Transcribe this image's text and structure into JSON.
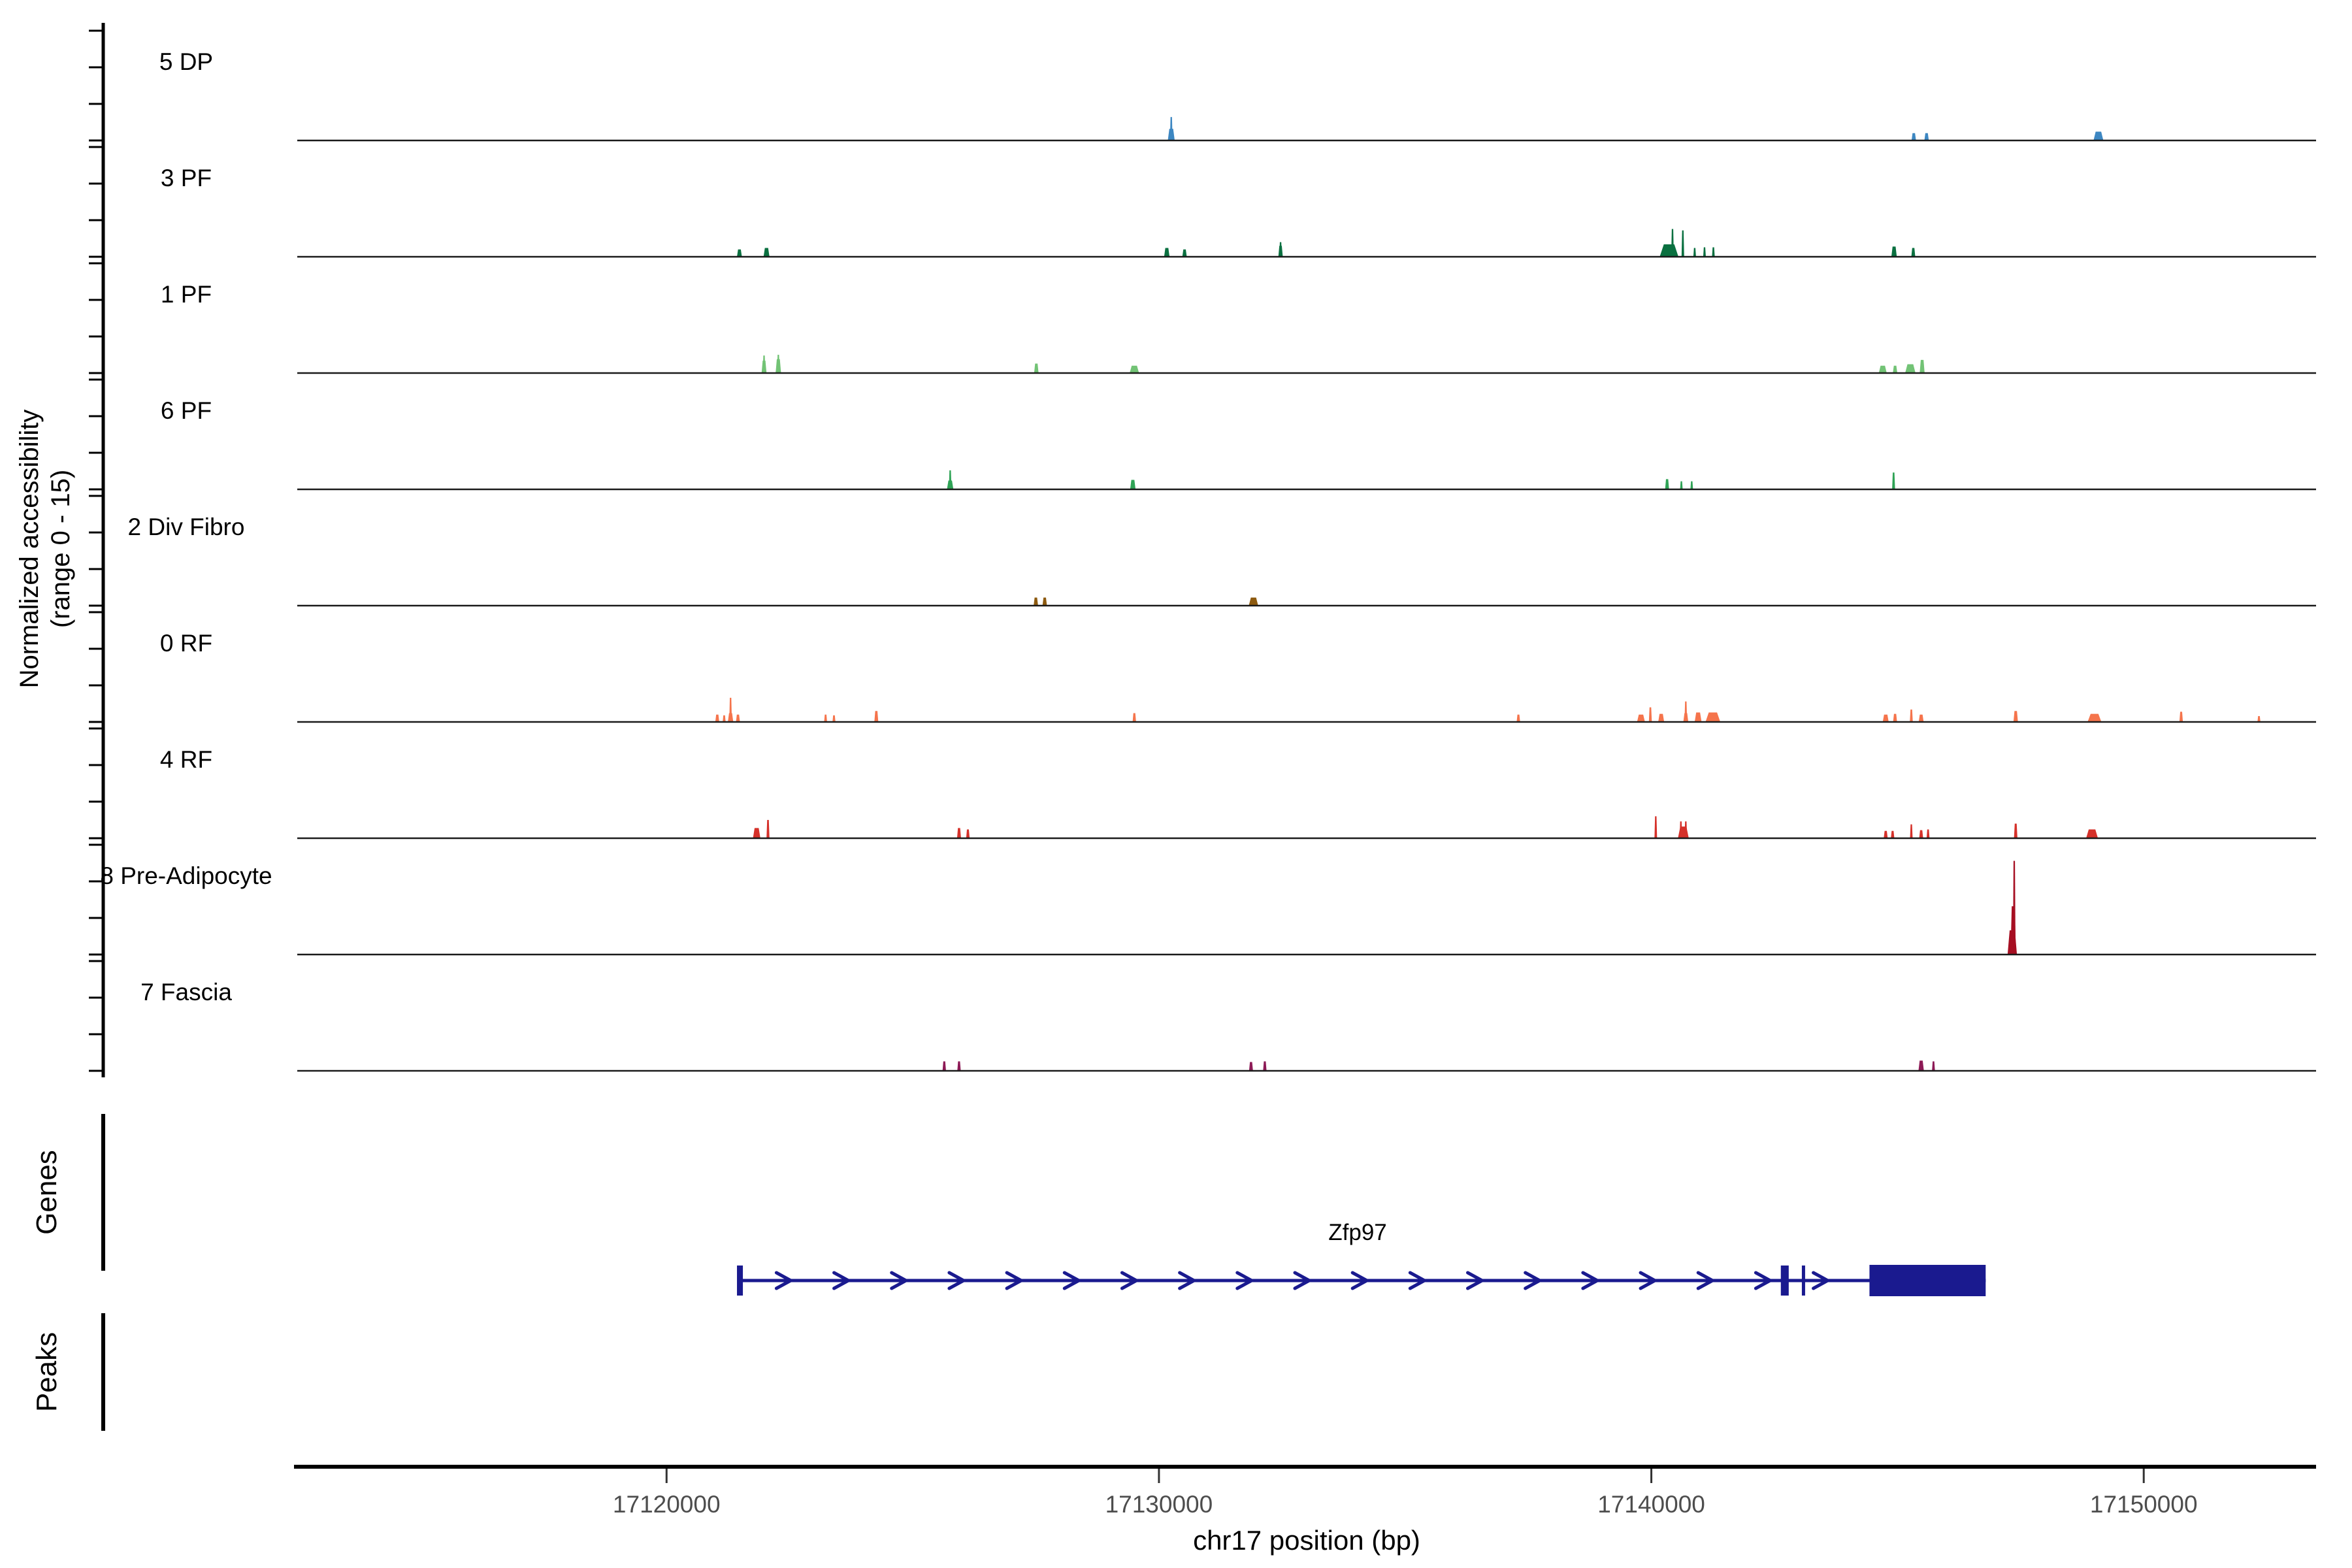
{
  "chart_data": {
    "type": "area",
    "subtype": "genome-accessibility-tracks",
    "y_axis": {
      "label_line1": "Normalized accessibility",
      "label_line2": "(range 0 - 15)",
      "range": [
        0,
        15
      ],
      "tick_values": [
        0,
        5,
        10,
        15
      ]
    },
    "x_axis": {
      "title": "chr17 position (bp)",
      "domain": [
        17112500,
        17153500
      ],
      "ticks": [
        17120000,
        17130000,
        17140000,
        17150000
      ]
    },
    "sections": {
      "genes_label": "Genes",
      "peaks_label": "Peaks"
    },
    "gene": {
      "name": "Zfp97",
      "chrom": "chr17",
      "start": 17121490,
      "end": 17146790,
      "strand": "+",
      "color": "#1A1A8F",
      "exon_ticks": [
        {
          "pos": 17121490,
          "w": 120
        },
        {
          "pos": 17142710,
          "w": 160
        },
        {
          "pos": 17143090,
          "w": 60
        }
      ],
      "terminal_exon": {
        "start": 17144430,
        "end": 17146790
      }
    },
    "tracks": [
      {
        "label": "5 DP",
        "color": "#3D87C2",
        "peaks": [
          [
            17130250,
            140,
            1.6
          ],
          [
            17130250,
            40,
            3.2
          ],
          [
            17145330,
            90,
            1.0
          ],
          [
            17145590,
            90,
            1.0
          ],
          [
            17149080,
            200,
            1.2
          ]
        ]
      },
      {
        "label": "3 PF",
        "color": "#0A7040",
        "peaks": [
          [
            17121480,
            100,
            1.0
          ],
          [
            17122030,
            120,
            1.2
          ],
          [
            17130160,
            110,
            1.2
          ],
          [
            17130520,
            90,
            1.0
          ],
          [
            17132470,
            90,
            1.5
          ],
          [
            17132470,
            30,
            2.0
          ],
          [
            17140360,
            380,
            1.7
          ],
          [
            17140430,
            30,
            3.8
          ],
          [
            17140640,
            30,
            3.6
          ],
          [
            17140880,
            45,
            1.2
          ],
          [
            17141080,
            45,
            1.3
          ],
          [
            17141260,
            55,
            1.3
          ],
          [
            17144930,
            110,
            1.4
          ],
          [
            17145320,
            80,
            1.2
          ]
        ]
      },
      {
        "label": "1 PF",
        "color": "#72C375",
        "peaks": [
          [
            17121980,
            100,
            1.7
          ],
          [
            17121980,
            30,
            2.4
          ],
          [
            17122270,
            110,
            1.9
          ],
          [
            17122270,
            30,
            2.5
          ],
          [
            17127510,
            90,
            1.3
          ],
          [
            17129500,
            190,
            1.0
          ],
          [
            17144700,
            160,
            1.0
          ],
          [
            17144950,
            90,
            1.0
          ],
          [
            17145260,
            210,
            1.2
          ],
          [
            17145500,
            100,
            1.8
          ]
        ]
      },
      {
        "label": "6 PF",
        "color": "#2FA356",
        "peaks": [
          [
            17125760,
            130,
            1.2
          ],
          [
            17125760,
            25,
            2.6
          ],
          [
            17129470,
            110,
            1.3
          ],
          [
            17140320,
            80,
            1.4
          ],
          [
            17140610,
            50,
            1.1
          ],
          [
            17140820,
            50,
            1.1
          ],
          [
            17144920,
            60,
            2.3
          ]
        ]
      },
      {
        "label": "2 Div Fibro",
        "color": "#8D5A0F",
        "peaks": [
          [
            17127500,
            90,
            1.1
          ],
          [
            17127680,
            90,
            1.1
          ],
          [
            17131920,
            190,
            1.1
          ]
        ]
      },
      {
        "label": "0 RF",
        "color": "#F5744C",
        "peaks": [
          [
            17121030,
            80,
            1.0
          ],
          [
            17121170,
            60,
            0.9
          ],
          [
            17121300,
            110,
            1.2
          ],
          [
            17121300,
            25,
            3.3
          ],
          [
            17121450,
            80,
            1.0
          ],
          [
            17123230,
            60,
            1.0
          ],
          [
            17123400,
            60,
            0.9
          ],
          [
            17124260,
            80,
            1.5
          ],
          [
            17129500,
            70,
            1.2
          ],
          [
            17137300,
            70,
            1.0
          ],
          [
            17139790,
            160,
            1.0
          ],
          [
            17139980,
            60,
            2.0
          ],
          [
            17140200,
            120,
            1.1
          ],
          [
            17140700,
            100,
            1.2
          ],
          [
            17140700,
            30,
            2.8
          ],
          [
            17140950,
            140,
            1.3
          ],
          [
            17141250,
            300,
            1.3
          ],
          [
            17144760,
            120,
            1.0
          ],
          [
            17144950,
            80,
            1.1
          ],
          [
            17145280,
            60,
            1.7
          ],
          [
            17145480,
            100,
            1.0
          ],
          [
            17147400,
            90,
            1.5
          ],
          [
            17149000,
            280,
            1.1
          ],
          [
            17150760,
            70,
            1.4
          ],
          [
            17152340,
            60,
            0.8
          ]
        ]
      },
      {
        "label": "4 RF",
        "color": "#D5312A",
        "peaks": [
          [
            17121830,
            150,
            1.4
          ],
          [
            17122060,
            60,
            2.5
          ],
          [
            17125940,
            80,
            1.4
          ],
          [
            17126120,
            70,
            1.2
          ],
          [
            17140090,
            50,
            3.0
          ],
          [
            17140650,
            220,
            1.6
          ],
          [
            17140600,
            30,
            2.3
          ],
          [
            17140700,
            30,
            2.3
          ],
          [
            17144760,
            80,
            1.0
          ],
          [
            17144900,
            70,
            1.0
          ],
          [
            17145280,
            50,
            1.9
          ],
          [
            17145480,
            80,
            1.1
          ],
          [
            17145620,
            60,
            1.2
          ],
          [
            17147400,
            70,
            2.0
          ],
          [
            17148950,
            240,
            1.2
          ]
        ]
      },
      {
        "label": "8 Pre-Adipocyte",
        "color": "#A60F22",
        "peaks": [
          [
            17147330,
            190,
            3.3
          ],
          [
            17147350,
            110,
            6.6
          ],
          [
            17147370,
            40,
            12.8
          ]
        ]
      },
      {
        "label": "7 Fascia",
        "color": "#8D1A56",
        "peaks": [
          [
            17125640,
            70,
            1.3
          ],
          [
            17125940,
            70,
            1.3
          ],
          [
            17131870,
            80,
            1.2
          ],
          [
            17132150,
            70,
            1.3
          ],
          [
            17145480,
            110,
            1.4
          ],
          [
            17145730,
            60,
            1.3
          ]
        ]
      }
    ]
  }
}
